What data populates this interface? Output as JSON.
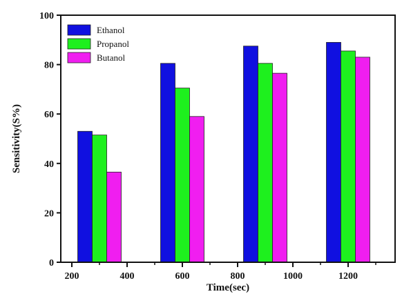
{
  "chart_data": {
    "type": "bar",
    "xlabel": "Time(sec)",
    "ylabel": "Sensitivity(S%)",
    "xlim": [
      160,
      1370
    ],
    "ylim": [
      0,
      100
    ],
    "grid": false,
    "legend_position": "top-left",
    "x_ticks": [
      200,
      400,
      600,
      800,
      1000,
      1200
    ],
    "y_ticks": [
      0,
      20,
      40,
      60,
      80,
      100
    ],
    "categories": [
      300,
      600,
      900,
      1200
    ],
    "series": [
      {
        "name": "Ethanol",
        "color": "#1010e0",
        "values": [
          53,
          80.5,
          87.5,
          89
        ]
      },
      {
        "name": "Propanol",
        "color": "#1ef01e",
        "values": [
          51.5,
          70.5,
          80.5,
          85.5
        ]
      },
      {
        "name": "Butanol",
        "color": "#f01ef0",
        "values": [
          36.5,
          59,
          76.5,
          83
        ]
      }
    ]
  }
}
